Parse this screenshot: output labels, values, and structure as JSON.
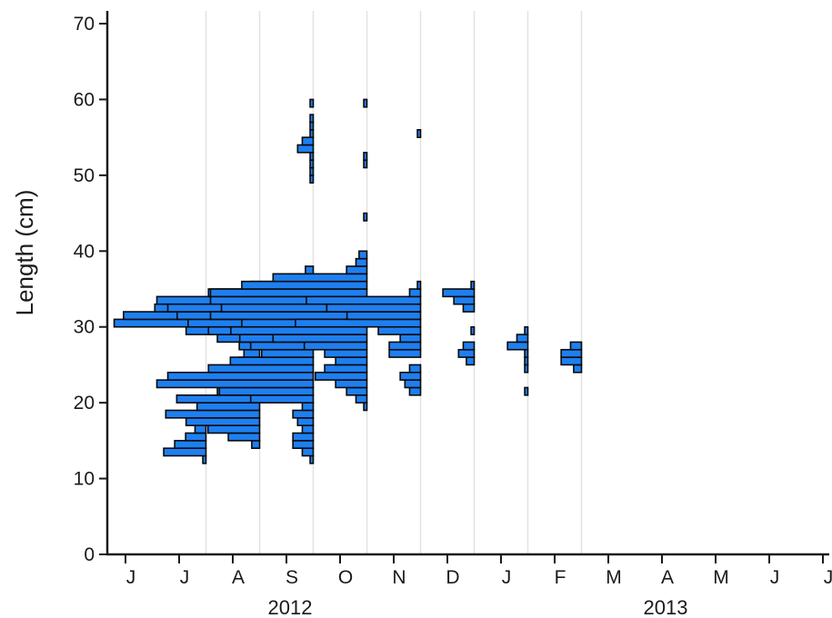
{
  "chart_data": {
    "type": "histogram",
    "ylabel": "Length (cm)",
    "ylim": [
      0,
      70
    ],
    "yticks": [
      0,
      10,
      20,
      30,
      40,
      50,
      60,
      70
    ],
    "xticks": [
      {
        "label": "J",
        "month": 0
      },
      {
        "label": "J",
        "month": 1
      },
      {
        "label": "A",
        "month": 2
      },
      {
        "label": "S",
        "month": 3
      },
      {
        "label": "O",
        "month": 4
      },
      {
        "label": "N",
        "month": 5
      },
      {
        "label": "D",
        "month": 6
      },
      {
        "label": "J",
        "month": 7
      },
      {
        "label": "F",
        "month": 8
      },
      {
        "label": "M",
        "month": 9
      },
      {
        "label": "A",
        "month": 10
      },
      {
        "label": "M",
        "month": 11
      },
      {
        "label": "J",
        "month": 12
      },
      {
        "label": "J",
        "month": 13
      }
    ],
    "years": [
      {
        "label": "2012",
        "month": 3
      },
      {
        "label": "2013",
        "month": 10
      }
    ],
    "grid": "vertical lines at sampling dates",
    "bar_color": "#1e7ff0",
    "samples": [
      {
        "month": 1.5,
        "bins": [
          {
            "y": 12.5,
            "w": 0.02
          },
          {
            "y": 13.5,
            "w": 0.27
          },
          {
            "y": 14.5,
            "w": 0.2
          },
          {
            "y": 15.5,
            "w": 0.13
          },
          {
            "y": 16.5,
            "w": 0.07
          },
          {
            "y": 18.5,
            "w": 0.02
          }
        ]
      },
      {
        "month": 2.5,
        "bins": [
          {
            "y": 14.5,
            "w": 0.05
          },
          {
            "y": 15.5,
            "w": 0.2
          },
          {
            "y": 16.5,
            "w": 0.33
          },
          {
            "y": 17.5,
            "w": 0.47
          },
          {
            "y": 18.5,
            "w": 0.6
          },
          {
            "y": 19.5,
            "w": 0.4
          },
          {
            "y": 20.5,
            "w": 0.53
          },
          {
            "y": 21.5,
            "w": 0.27
          },
          {
            "y": 22.5,
            "w": 0.13
          },
          {
            "y": 23.5,
            "w": 0.1
          },
          {
            "y": 24.5,
            "w": 0.07
          },
          {
            "y": 25.5,
            "w": 0.13
          },
          {
            "y": 26.5,
            "w": 0.1
          },
          {
            "y": 27.5,
            "w": 0.13
          },
          {
            "y": 28.5,
            "w": 0.27
          },
          {
            "y": 29.5,
            "w": 0.47
          },
          {
            "y": 30.5,
            "w": 0.93
          },
          {
            "y": 31.5,
            "w": 0.87
          },
          {
            "y": 32.5,
            "w": 0.67
          },
          {
            "y": 33.5,
            "w": 0.27
          }
        ]
      },
      {
        "month": 3.5,
        "bins": [
          {
            "y": 12.5,
            "w": 0.02
          },
          {
            "y": 13.5,
            "w": 0.07
          },
          {
            "y": 14.5,
            "w": 0.13
          },
          {
            "y": 15.5,
            "w": 0.13
          },
          {
            "y": 16.5,
            "w": 0.07
          },
          {
            "y": 17.5,
            "w": 0.1
          },
          {
            "y": 18.5,
            "w": 0.13
          },
          {
            "y": 19.5,
            "w": 0.07
          },
          {
            "y": 20.5,
            "w": 0.4
          },
          {
            "y": 21.5,
            "w": 0.6
          },
          {
            "y": 22.5,
            "w": 1.0
          },
          {
            "y": 23.5,
            "w": 0.93
          },
          {
            "y": 24.5,
            "w": 0.67
          },
          {
            "y": 25.5,
            "w": 0.53
          },
          {
            "y": 26.5,
            "w": 0.33
          },
          {
            "y": 27.5,
            "w": 0.4
          },
          {
            "y": 28.5,
            "w": 0.47
          },
          {
            "y": 29.5,
            "w": 0.67
          },
          {
            "y": 30.5,
            "w": 0.8
          },
          {
            "y": 31.5,
            "w": 0.87
          },
          {
            "y": 32.5,
            "w": 0.93
          },
          {
            "y": 33.5,
            "w": 1.0
          },
          {
            "y": 34.5,
            "w": 0.67
          },
          {
            "y": 35.5,
            "w": 0.4
          },
          {
            "y": 36.5,
            "w": 0.13
          },
          {
            "y": 37.5,
            "w": 0.05
          },
          {
            "y": 49.5,
            "w": 0.02
          },
          {
            "y": 50.5,
            "w": 0.02
          },
          {
            "y": 51.5,
            "w": 0.02
          },
          {
            "y": 52.5,
            "w": 0.02
          },
          {
            "y": 53.5,
            "w": 0.1
          },
          {
            "y": 54.5,
            "w": 0.07
          },
          {
            "y": 55.5,
            "w": 0.02
          },
          {
            "y": 56.5,
            "w": 0.02
          },
          {
            "y": 57.5,
            "w": 0.02
          },
          {
            "y": 59.5,
            "w": 0.02
          }
        ]
      },
      {
        "month": 4.5,
        "bins": [
          {
            "y": 19.5,
            "w": 0.02
          },
          {
            "y": 20.5,
            "w": 0.07
          },
          {
            "y": 21.5,
            "w": 0.13
          },
          {
            "y": 22.5,
            "w": 0.2
          },
          {
            "y": 23.5,
            "w": 0.33
          },
          {
            "y": 24.5,
            "w": 0.27
          },
          {
            "y": 25.5,
            "w": 0.2
          },
          {
            "y": 26.5,
            "w": 0.27
          },
          {
            "y": 27.5,
            "w": 0.4
          },
          {
            "y": 28.5,
            "w": 0.6
          },
          {
            "y": 29.5,
            "w": 0.87
          },
          {
            "y": 30.5,
            "w": 0.8
          },
          {
            "y": 31.5,
            "w": 1.0
          },
          {
            "y": 32.5,
            "w": 0.93
          },
          {
            "y": 33.5,
            "w": 1.0
          },
          {
            "y": 34.5,
            "w": 1.0
          },
          {
            "y": 35.5,
            "w": 0.8
          },
          {
            "y": 36.5,
            "w": 0.6
          },
          {
            "y": 37.5,
            "w": 0.13
          },
          {
            "y": 38.5,
            "w": 0.07
          },
          {
            "y": 39.5,
            "w": 0.05
          },
          {
            "y": 44.5,
            "w": 0.02
          },
          {
            "y": 51.5,
            "w": 0.02
          },
          {
            "y": 52.5,
            "w": 0.02
          },
          {
            "y": 59.5,
            "w": 0.02
          }
        ]
      },
      {
        "month": 5.5,
        "bins": [
          {
            "y": 21.5,
            "w": 0.07
          },
          {
            "y": 22.5,
            "w": 0.1
          },
          {
            "y": 23.5,
            "w": 0.13
          },
          {
            "y": 24.5,
            "w": 0.07
          },
          {
            "y": 26.5,
            "w": 0.2
          },
          {
            "y": 27.5,
            "w": 0.2
          },
          {
            "y": 28.5,
            "w": 0.13
          },
          {
            "y": 29.5,
            "w": 0.27
          },
          {
            "y": 30.5,
            "w": 0.8
          },
          {
            "y": 31.5,
            "w": 0.47
          },
          {
            "y": 32.5,
            "w": 0.6
          },
          {
            "y": 33.5,
            "w": 0.73
          },
          {
            "y": 34.5,
            "w": 0.07
          },
          {
            "y": 35.5,
            "w": 0.02
          },
          {
            "y": 55.5,
            "w": 0.02
          }
        ]
      },
      {
        "month": 6.5,
        "bins": [
          {
            "y": 25.5,
            "w": 0.05
          },
          {
            "y": 26.5,
            "w": 0.1
          },
          {
            "y": 27.5,
            "w": 0.07
          },
          {
            "y": 29.5,
            "w": 0.02
          },
          {
            "y": 32.5,
            "w": 0.07
          },
          {
            "y": 33.5,
            "w": 0.13
          },
          {
            "y": 34.5,
            "w": 0.2
          },
          {
            "y": 35.5,
            "w": 0.02
          }
        ]
      },
      {
        "month": 7.5,
        "bins": [
          {
            "y": 21.5,
            "w": 0.02
          },
          {
            "y": 24.5,
            "w": 0.02
          },
          {
            "y": 25.5,
            "w": 0.02
          },
          {
            "y": 26.5,
            "w": 0.02
          },
          {
            "y": 27.5,
            "w": 0.13
          },
          {
            "y": 28.5,
            "w": 0.07
          },
          {
            "y": 29.5,
            "w": 0.02
          }
        ]
      },
      {
        "month": 8.5,
        "bins": [
          {
            "y": 24.5,
            "w": 0.05
          },
          {
            "y": 25.5,
            "w": 0.13
          },
          {
            "y": 26.5,
            "w": 0.13
          },
          {
            "y": 27.5,
            "w": 0.07
          }
        ]
      }
    ]
  }
}
